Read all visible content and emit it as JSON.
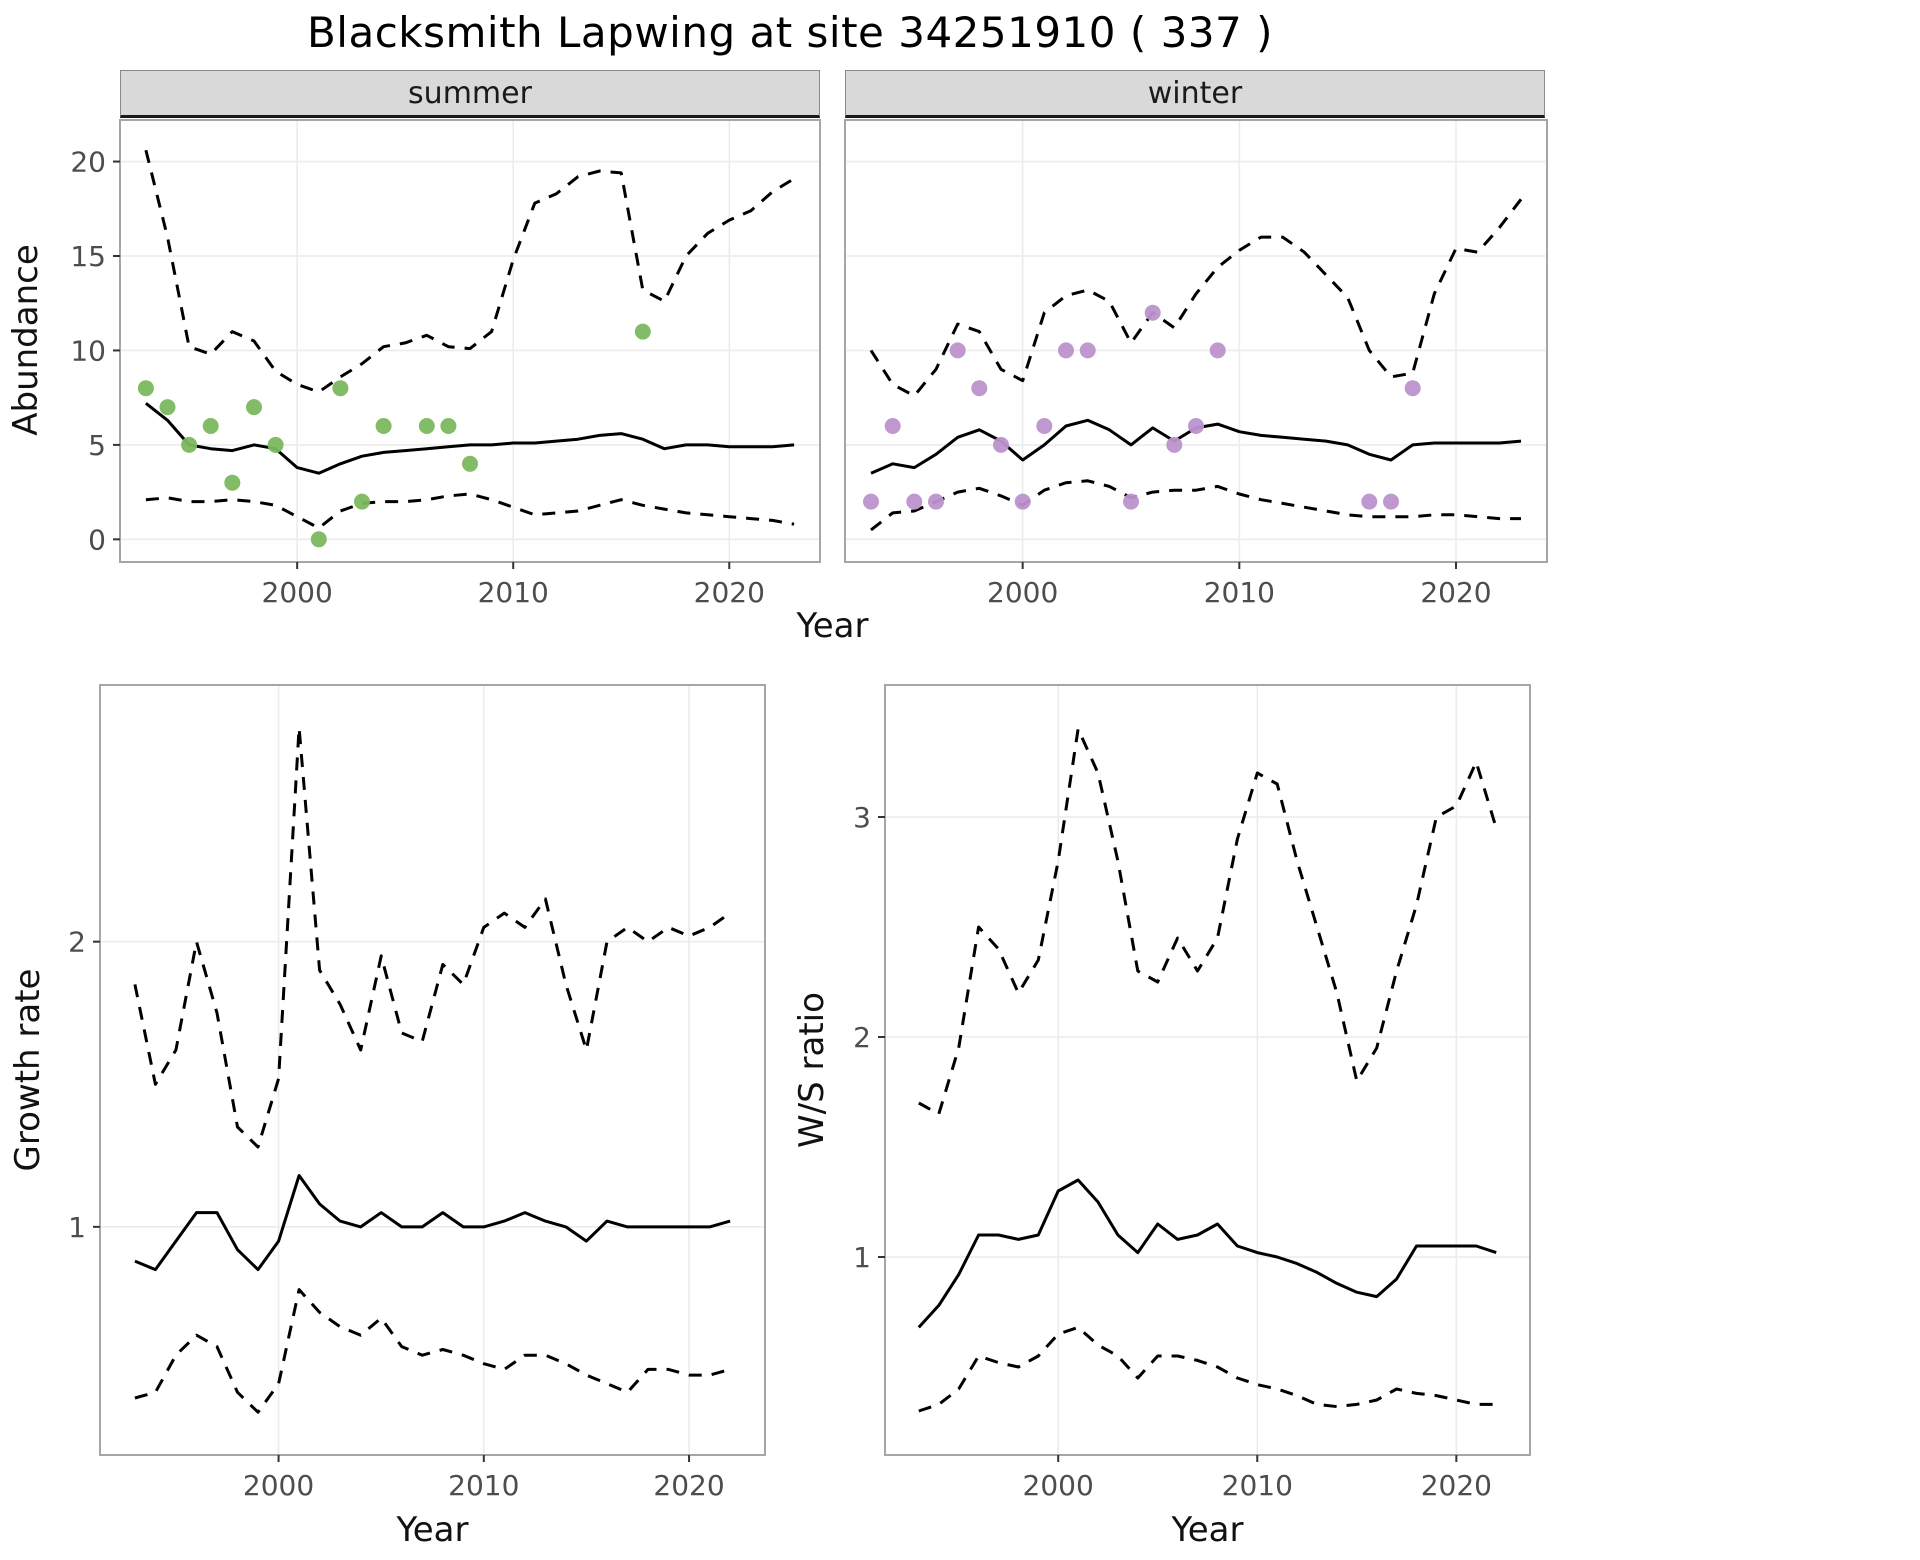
{
  "title": "Blacksmith Lapwing at site 34251910 ( 337 )",
  "shared_axis": {
    "x": "Year",
    "y_top": "Abundance"
  },
  "colors": {
    "summer_points": "#7cb85e",
    "winter_points": "#bd92ce",
    "line": "#000000",
    "strip_bg": "#d9d9d9",
    "panel_border": "#a6a6a6",
    "grid": "#ececec",
    "tick_text": "#4d4d4d"
  },
  "chart_data": [
    {
      "id": "abundance-summer",
      "type": "line",
      "facet": "summer",
      "xlabel": "Year",
      "ylabel": "Abundance",
      "xlim": [
        1991.8,
        2024.2
      ],
      "ylim": [
        -1.2,
        22.2
      ],
      "xticks": [
        2000,
        2010,
        2020
      ],
      "yticks": [
        0,
        5,
        10,
        15,
        20
      ],
      "x": [
        1993,
        1994,
        1995,
        1996,
        1997,
        1998,
        1999,
        2000,
        2001,
        2002,
        2003,
        2004,
        2005,
        2006,
        2007,
        2008,
        2009,
        2010,
        2011,
        2012,
        2013,
        2014,
        2015,
        2016,
        2017,
        2018,
        2019,
        2020,
        2021,
        2022,
        2023
      ],
      "series": [
        {
          "name": "median",
          "style": "solid",
          "values": [
            7.2,
            6.3,
            5.0,
            4.8,
            4.7,
            5.0,
            4.8,
            3.8,
            3.5,
            4.0,
            4.4,
            4.6,
            4.7,
            4.8,
            4.9,
            5.0,
            5.0,
            5.1,
            5.1,
            5.2,
            5.3,
            5.5,
            5.6,
            5.3,
            4.8,
            5.0,
            5.0,
            4.9,
            4.9,
            4.9,
            5.0
          ]
        },
        {
          "name": "upper-ci",
          "style": "dashed",
          "values": [
            20.6,
            16.0,
            10.2,
            9.8,
            11.0,
            10.5,
            8.9,
            8.2,
            7.8,
            8.6,
            9.3,
            10.2,
            10.4,
            10.8,
            10.2,
            10.1,
            11.0,
            14.8,
            17.8,
            18.3,
            19.2,
            19.5,
            19.4,
            13.2,
            12.6,
            15.0,
            16.2,
            16.9,
            17.4,
            18.4,
            19.1
          ]
        },
        {
          "name": "lower-ci",
          "style": "dashed",
          "values": [
            2.1,
            2.2,
            2.0,
            2.0,
            2.1,
            2.0,
            1.8,
            1.2,
            0.6,
            1.5,
            1.9,
            2.0,
            2.0,
            2.1,
            2.3,
            2.4,
            2.1,
            1.7,
            1.3,
            1.4,
            1.5,
            1.8,
            2.1,
            1.8,
            1.6,
            1.4,
            1.3,
            1.2,
            1.1,
            1.0,
            0.8
          ]
        },
        {
          "name": "observed-counts",
          "style": "points",
          "color": "#7cb85e",
          "x": [
            1993,
            1994,
            1995,
            1996,
            1997,
            1998,
            1999,
            2001,
            2002,
            2003,
            2004,
            2006,
            2007,
            2008,
            2016
          ],
          "values": [
            8,
            7,
            5,
            6,
            3,
            7,
            5,
            0,
            8,
            2,
            6,
            6,
            6,
            4,
            11
          ]
        }
      ]
    },
    {
      "id": "abundance-winter",
      "type": "line",
      "facet": "winter",
      "xlabel": "Year",
      "ylabel": "Abundance",
      "xlim": [
        1991.8,
        2024.2
      ],
      "ylim": [
        -1.2,
        22.2
      ],
      "xticks": [
        2000,
        2010,
        2020
      ],
      "yticks": [
        0,
        5,
        10,
        15,
        20
      ],
      "x": [
        1993,
        1994,
        1995,
        1996,
        1997,
        1998,
        1999,
        2000,
        2001,
        2002,
        2003,
        2004,
        2005,
        2006,
        2007,
        2008,
        2009,
        2010,
        2011,
        2012,
        2013,
        2014,
        2015,
        2016,
        2017,
        2018,
        2019,
        2020,
        2021,
        2022,
        2023
      ],
      "series": [
        {
          "name": "median",
          "style": "solid",
          "values": [
            3.5,
            4.0,
            3.8,
            4.5,
            5.4,
            5.8,
            5.2,
            4.2,
            5.0,
            6.0,
            6.3,
            5.8,
            5.0,
            5.9,
            5.2,
            5.9,
            6.1,
            5.7,
            5.5,
            5.4,
            5.3,
            5.2,
            5.0,
            4.5,
            4.2,
            5.0,
            5.1,
            5.1,
            5.1,
            5.1,
            5.2
          ]
        },
        {
          "name": "upper-ci",
          "style": "dashed",
          "values": [
            10.0,
            8.2,
            7.6,
            9.0,
            11.4,
            11.0,
            9.0,
            8.4,
            12.0,
            12.9,
            13.2,
            12.6,
            10.4,
            12.0,
            11.2,
            13.0,
            14.4,
            15.3,
            16.0,
            16.0,
            15.2,
            14.0,
            12.8,
            10.0,
            8.6,
            8.8,
            13.0,
            15.4,
            15.2,
            16.5,
            18.0
          ]
        },
        {
          "name": "lower-ci",
          "style": "dashed",
          "values": [
            0.5,
            1.4,
            1.5,
            2.0,
            2.5,
            2.7,
            2.3,
            1.8,
            2.6,
            3.0,
            3.1,
            2.8,
            2.2,
            2.5,
            2.6,
            2.6,
            2.8,
            2.4,
            2.1,
            1.9,
            1.7,
            1.5,
            1.3,
            1.2,
            1.2,
            1.2,
            1.3,
            1.3,
            1.2,
            1.1,
            1.1
          ]
        },
        {
          "name": "observed-counts",
          "style": "points",
          "color": "#bd92ce",
          "x": [
            1993,
            1994,
            1995,
            1996,
            1997,
            1998,
            1999,
            2000,
            2001,
            2002,
            2003,
            2005,
            2006,
            2007,
            2008,
            2009,
            2016,
            2017,
            2018
          ],
          "values": [
            2,
            6,
            2,
            2,
            10,
            8,
            5,
            2,
            6,
            10,
            10,
            2,
            12,
            5,
            6,
            10,
            2,
            2,
            8
          ]
        }
      ]
    },
    {
      "id": "growth-rate",
      "type": "line",
      "facet": "",
      "xlabel": "Year",
      "ylabel": "Growth rate",
      "xlim": [
        1991.3,
        2023.7
      ],
      "ylim": [
        0.2,
        2.9
      ],
      "xticks": [
        2000,
        2010,
        2020
      ],
      "yticks": [
        1,
        2
      ],
      "x": [
        1993,
        1994,
        1995,
        1996,
        1997,
        1998,
        1999,
        2000,
        2001,
        2002,
        2003,
        2004,
        2005,
        2006,
        2007,
        2008,
        2009,
        2010,
        2011,
        2012,
        2013,
        2014,
        2015,
        2016,
        2017,
        2018,
        2019,
        2020,
        2021,
        2022
      ],
      "series": [
        {
          "name": "median",
          "style": "solid",
          "values": [
            0.88,
            0.85,
            0.95,
            1.05,
            1.05,
            0.92,
            0.85,
            0.95,
            1.18,
            1.08,
            1.02,
            1.0,
            1.05,
            1.0,
            1.0,
            1.05,
            1.0,
            1.0,
            1.02,
            1.05,
            1.02,
            1.0,
            0.95,
            1.02,
            1.0,
            1.0,
            1.0,
            1.0,
            1.0,
            1.02
          ]
        },
        {
          "name": "upper-ci",
          "style": "dashed",
          "values": [
            1.85,
            1.5,
            1.62,
            2.0,
            1.75,
            1.35,
            1.28,
            1.52,
            2.75,
            1.9,
            1.78,
            1.62,
            1.95,
            1.68,
            1.65,
            1.92,
            1.85,
            2.05,
            2.1,
            2.05,
            2.15,
            1.85,
            1.62,
            2.0,
            2.05,
            2.0,
            2.05,
            2.02,
            2.05,
            2.1
          ]
        },
        {
          "name": "lower-ci",
          "style": "dashed",
          "values": [
            0.4,
            0.42,
            0.55,
            0.62,
            0.58,
            0.42,
            0.35,
            0.45,
            0.78,
            0.7,
            0.65,
            0.62,
            0.68,
            0.58,
            0.55,
            0.57,
            0.55,
            0.52,
            0.5,
            0.55,
            0.55,
            0.52,
            0.48,
            0.45,
            0.42,
            0.5,
            0.5,
            0.48,
            0.48,
            0.5
          ]
        }
      ]
    },
    {
      "id": "ws-ratio",
      "type": "line",
      "facet": "",
      "xlabel": "Year",
      "ylabel": "W/S ratio",
      "xlim": [
        1991.3,
        2023.7
      ],
      "ylim": [
        0.1,
        3.6
      ],
      "xticks": [
        2000,
        2010,
        2020
      ],
      "yticks": [
        1,
        2,
        3
      ],
      "x": [
        1993,
        1994,
        1995,
        1996,
        1997,
        1998,
        1999,
        2000,
        2001,
        2002,
        2003,
        2004,
        2005,
        2006,
        2007,
        2008,
        2009,
        2010,
        2011,
        2012,
        2013,
        2014,
        2015,
        2016,
        2017,
        2018,
        2019,
        2020,
        2021,
        2022
      ],
      "series": [
        {
          "name": "median",
          "style": "solid",
          "values": [
            0.68,
            0.78,
            0.92,
            1.1,
            1.1,
            1.08,
            1.1,
            1.3,
            1.35,
            1.25,
            1.1,
            1.02,
            1.15,
            1.08,
            1.1,
            1.15,
            1.05,
            1.02,
            1.0,
            0.97,
            0.93,
            0.88,
            0.84,
            0.82,
            0.9,
            1.05,
            1.05,
            1.05,
            1.05,
            1.02
          ]
        },
        {
          "name": "upper-ci",
          "style": "dashed",
          "values": [
            1.7,
            1.65,
            1.95,
            2.5,
            2.4,
            2.2,
            2.35,
            2.8,
            3.4,
            3.2,
            2.8,
            2.3,
            2.25,
            2.45,
            2.3,
            2.45,
            2.9,
            3.2,
            3.15,
            2.8,
            2.5,
            2.2,
            1.8,
            1.95,
            2.3,
            2.6,
            3.0,
            3.05,
            3.25,
            2.95
          ]
        },
        {
          "name": "lower-ci",
          "style": "dashed",
          "values": [
            0.3,
            0.33,
            0.4,
            0.55,
            0.52,
            0.5,
            0.55,
            0.65,
            0.68,
            0.6,
            0.55,
            0.45,
            0.55,
            0.55,
            0.53,
            0.5,
            0.45,
            0.42,
            0.4,
            0.37,
            0.33,
            0.32,
            0.33,
            0.35,
            0.4,
            0.38,
            0.37,
            0.35,
            0.33,
            0.33
          ]
        }
      ]
    }
  ]
}
